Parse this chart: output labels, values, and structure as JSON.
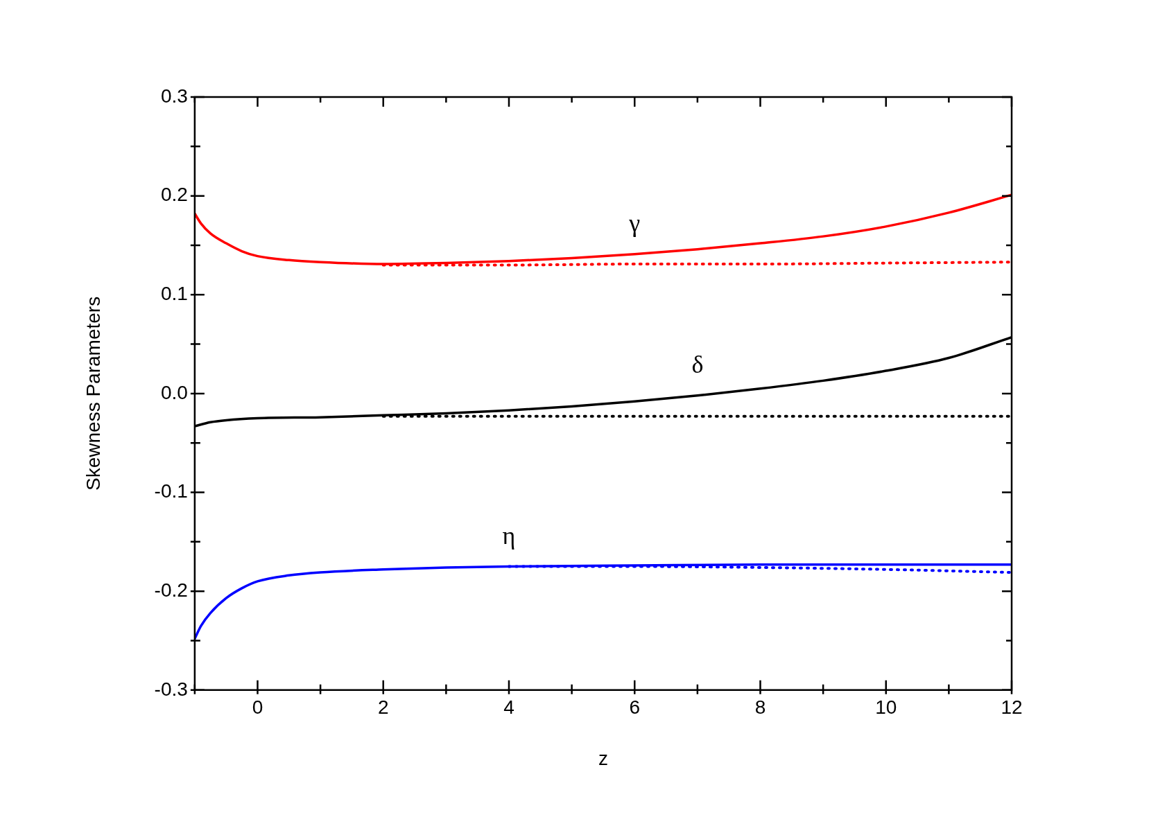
{
  "chart_data": {
    "type": "line",
    "xlabel": "z",
    "ylabel": "Skewness Parameters",
    "xlim": [
      -1,
      12
    ],
    "ylim": [
      -0.3,
      0.3
    ],
    "xticks": [
      {
        "value": -1,
        "label": null
      },
      0,
      {
        "value": 1,
        "label": null
      },
      2,
      {
        "value": 3,
        "label": null
      },
      4,
      {
        "value": 5,
        "label": null
      },
      6,
      {
        "value": 7,
        "label": null
      },
      8,
      {
        "value": 9,
        "label": null
      },
      10,
      {
        "value": 11,
        "label": null
      },
      12
    ],
    "yticks": [
      -0.3,
      {
        "value": -0.25,
        "label": null
      },
      -0.2,
      {
        "value": -0.15,
        "label": null
      },
      -0.1,
      {
        "value": -0.05,
        "label": null
      },
      {
        "value": 0,
        "label": "0.0"
      },
      {
        "value": 0.05,
        "label": null
      },
      0.1,
      {
        "value": 0.15,
        "label": null
      },
      0.2,
      {
        "value": 0.25,
        "label": null
      },
      0.3
    ],
    "grid": false,
    "legend": false,
    "marker": "none",
    "series": [
      {
        "color": "#ff0000",
        "line_style": "solid",
        "x": [
          -1,
          -0.9,
          -0.75,
          -0.5,
          -0.25,
          0,
          0.5,
          1,
          2,
          3,
          4,
          5,
          6,
          7,
          8,
          9,
          10,
          11,
          12
        ],
        "values": [
          0.182,
          0.172,
          0.162,
          0.152,
          0.144,
          0.139,
          0.135,
          0.133,
          0.131,
          0.132,
          0.134,
          0.137,
          0.141,
          0.146,
          0.152,
          0.159,
          0.169,
          0.183,
          0.201
        ]
      },
      {
        "color": "#ff0000",
        "line_style": "dotted",
        "x": [
          2,
          4,
          6,
          8,
          10,
          12
        ],
        "values": [
          0.13,
          0.13,
          0.131,
          0.131,
          0.132,
          0.133
        ]
      },
      {
        "color": "#000000",
        "line_style": "solid",
        "x": [
          -1,
          -0.75,
          -0.5,
          0,
          1,
          2,
          3,
          4,
          5,
          6,
          7,
          8,
          9,
          10,
          11,
          12
        ],
        "values": [
          -0.033,
          -0.029,
          -0.027,
          -0.025,
          -0.024,
          -0.022,
          -0.02,
          -0.017,
          -0.013,
          -0.008,
          -0.002,
          0.005,
          0.013,
          0.023,
          0.036,
          0.057
        ]
      },
      {
        "color": "#000000",
        "line_style": "dotted",
        "x": [
          2,
          4,
          6,
          8,
          10,
          12
        ],
        "values": [
          -0.023,
          -0.023,
          -0.023,
          -0.023,
          -0.023,
          -0.023
        ]
      },
      {
        "color": "#0000ff",
        "line_style": "solid",
        "x": [
          -1,
          -0.9,
          -0.75,
          -0.5,
          -0.25,
          0,
          0.5,
          1,
          2,
          3,
          4,
          6,
          8,
          10,
          12
        ],
        "values": [
          -0.248,
          -0.235,
          -0.222,
          -0.207,
          -0.197,
          -0.19,
          -0.184,
          -0.181,
          -0.178,
          -0.176,
          -0.175,
          -0.174,
          -0.173,
          -0.173,
          -0.173
        ]
      },
      {
        "color": "#0000ff",
        "line_style": "dotted",
        "x": [
          4,
          6,
          8,
          10,
          12
        ],
        "values": [
          -0.175,
          -0.175,
          -0.176,
          -0.178,
          -0.181
        ]
      }
    ],
    "annotations": [
      "γ",
      "δ",
      "η"
    ]
  }
}
